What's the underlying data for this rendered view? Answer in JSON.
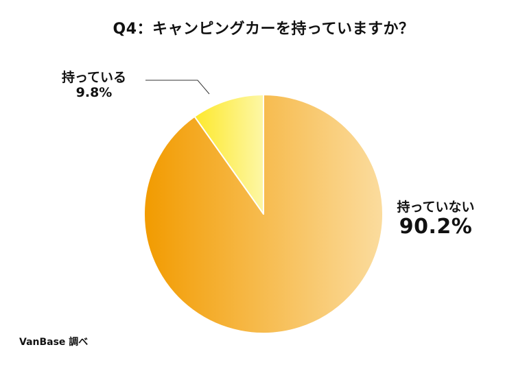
{
  "chart_data": {
    "type": "pie",
    "title": "Q4：キャンピングカーを持っていますか？",
    "slices": [
      {
        "label": "持っていない",
        "value": 90.2,
        "value_label": "90.2%",
        "colors": [
          "#f29b00",
          "#fbdc9e"
        ]
      },
      {
        "label": "持っている",
        "value": 9.8,
        "value_label": "9.8%",
        "colors": [
          "#fde82a",
          "#fdf7a6"
        ]
      }
    ],
    "start_angle_deg": 0,
    "direction": "clockwise",
    "slice_border_color": "#ffffff"
  },
  "source": "VanBase 調べ"
}
